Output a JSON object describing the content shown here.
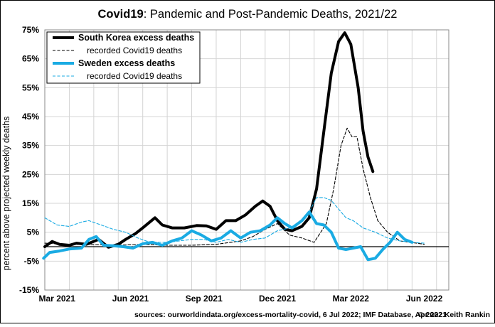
{
  "chart_data": {
    "type": "line",
    "title_bold": "Covid19",
    "title_rest": ": Pandemic and Post-Pandemic Deaths, 2021/22",
    "ylabel": "percent above projected weekly deaths",
    "xlabel": "",
    "ylim": [
      -15,
      75
    ],
    "yticks": [
      -15,
      -5,
      5,
      15,
      25,
      35,
      45,
      55,
      65,
      75
    ],
    "ytick_labels": [
      "-15%",
      "-5%",
      "5%",
      "15%",
      "25%",
      "35%",
      "45%",
      "55%",
      "65%",
      "75%"
    ],
    "xlim": [
      0,
      16.5
    ],
    "xticks": [
      {
        "pos": 0.5,
        "label": "Mar 2021"
      },
      {
        "pos": 3.5,
        "label": "Jun 2021"
      },
      {
        "pos": 6.5,
        "label": "Sep 2021"
      },
      {
        "pos": 9.5,
        "label": "Dec 2021"
      },
      {
        "pos": 12.5,
        "label": "Mar 2022"
      },
      {
        "pos": 15.5,
        "label": "Jun 2022"
      }
    ],
    "grid": true,
    "legend_position": "top-left",
    "series": [
      {
        "name": "South Korea excess deaths",
        "color": "#000000",
        "style": "solid-thick",
        "points": [
          [
            0,
            0
          ],
          [
            0.3,
            1.8
          ],
          [
            0.6,
            0.8
          ],
          [
            1,
            0.5
          ],
          [
            1.3,
            1.2
          ],
          [
            1.7,
            0.8
          ],
          [
            2.2,
            2.5
          ],
          [
            2.6,
            -0.2
          ],
          [
            3,
            0.8
          ],
          [
            3.3,
            2.5
          ],
          [
            3.7,
            4.5
          ],
          [
            4,
            6.5
          ],
          [
            4.5,
            10
          ],
          [
            4.8,
            7.5
          ],
          [
            5.2,
            6.5
          ],
          [
            5.7,
            6.5
          ],
          [
            6.2,
            7.3
          ],
          [
            6.6,
            7.2
          ],
          [
            7.0,
            6
          ],
          [
            7.4,
            9
          ],
          [
            7.8,
            9
          ],
          [
            8.2,
            11
          ],
          [
            8.6,
            14
          ],
          [
            8.9,
            15.8
          ],
          [
            9.2,
            14
          ],
          [
            9.5,
            9
          ],
          [
            9.8,
            6
          ],
          [
            10.1,
            5.5
          ],
          [
            10.5,
            7
          ],
          [
            10.8,
            10
          ],
          [
            11.1,
            20
          ],
          [
            11.4,
            40
          ],
          [
            11.7,
            60
          ],
          [
            12.0,
            71
          ],
          [
            12.25,
            74
          ],
          [
            12.5,
            70
          ],
          [
            12.8,
            55
          ],
          [
            13.0,
            40
          ],
          [
            13.2,
            31
          ],
          [
            13.4,
            26
          ]
        ]
      },
      {
        "name": "recorded Covid19 deaths",
        "color": "#000000",
        "style": "dashed-thin",
        "points": [
          [
            0,
            1.2
          ],
          [
            1,
            0.8
          ],
          [
            2,
            0.7
          ],
          [
            3,
            0.5
          ],
          [
            4,
            0.8
          ],
          [
            5,
            0.5
          ],
          [
            6,
            0.5
          ],
          [
            7,
            0.8
          ],
          [
            8,
            2
          ],
          [
            8.5,
            3.5
          ],
          [
            9,
            6
          ],
          [
            9.5,
            8
          ],
          [
            10,
            4
          ],
          [
            10.5,
            3
          ],
          [
            11,
            1.5
          ],
          [
            11.5,
            8
          ],
          [
            11.8,
            20
          ],
          [
            12.1,
            35
          ],
          [
            12.35,
            41
          ],
          [
            12.55,
            38
          ],
          [
            12.75,
            38
          ],
          [
            13.0,
            27
          ],
          [
            13.3,
            17
          ],
          [
            13.6,
            9
          ],
          [
            14,
            5
          ],
          [
            14.5,
            2
          ],
          [
            15.2,
            1.2
          ],
          [
            15.5,
            0.8
          ]
        ]
      },
      {
        "name": "Sweden excess deaths",
        "color": "#1AABE3",
        "style": "solid-thick",
        "points": [
          [
            -0.05,
            -4
          ],
          [
            0.2,
            -2
          ],
          [
            0.6,
            -1.5
          ],
          [
            1.0,
            -0.8
          ],
          [
            1.5,
            -0.5
          ],
          [
            1.8,
            2.5
          ],
          [
            2.1,
            3.5
          ],
          [
            2.4,
            0.5
          ],
          [
            2.8,
            0.3
          ],
          [
            3.2,
            0
          ],
          [
            3.6,
            -0.5
          ],
          [
            4.0,
            1
          ],
          [
            4.4,
            1.5
          ],
          [
            4.8,
            0.5
          ],
          [
            5.2,
            2
          ],
          [
            5.6,
            3
          ],
          [
            6.0,
            5.5
          ],
          [
            6.4,
            4
          ],
          [
            6.8,
            2
          ],
          [
            7.2,
            3
          ],
          [
            7.6,
            5.5
          ],
          [
            8.0,
            3
          ],
          [
            8.4,
            5
          ],
          [
            8.8,
            5.5
          ],
          [
            9.2,
            7.5
          ],
          [
            9.5,
            10
          ],
          [
            9.8,
            8
          ],
          [
            10.1,
            6.5
          ],
          [
            10.5,
            9
          ],
          [
            10.8,
            12
          ],
          [
            11.1,
            8
          ],
          [
            11.4,
            7.5
          ],
          [
            11.7,
            5
          ],
          [
            12.0,
            -0.5
          ],
          [
            12.3,
            -1
          ],
          [
            12.6,
            -0.5
          ],
          [
            12.9,
            0
          ],
          [
            13.2,
            -4.5
          ],
          [
            13.5,
            -4
          ],
          [
            13.8,
            -1
          ],
          [
            14.1,
            1.5
          ],
          [
            14.4,
            5
          ],
          [
            14.7,
            2.5
          ],
          [
            15.0,
            1.5
          ]
        ]
      },
      {
        "name": "recorded Covid19 deaths",
        "color": "#1AABE3",
        "style": "dashed-thin",
        "points": [
          [
            0,
            10
          ],
          [
            0.5,
            7.5
          ],
          [
            1,
            7
          ],
          [
            1.5,
            8.5
          ],
          [
            1.8,
            9
          ],
          [
            2.3,
            7.5
          ],
          [
            2.8,
            6
          ],
          [
            3.3,
            5
          ],
          [
            3.8,
            3
          ],
          [
            4.3,
            1.5
          ],
          [
            5,
            1.5
          ],
          [
            5.5,
            2
          ],
          [
            6,
            2.5
          ],
          [
            6.5,
            2.5
          ],
          [
            7,
            1.5
          ],
          [
            7.5,
            2.5
          ],
          [
            8,
            1.5
          ],
          [
            8.5,
            2.5
          ],
          [
            9,
            3
          ],
          [
            9.5,
            5.5
          ],
          [
            10,
            6.5
          ],
          [
            10.5,
            9
          ],
          [
            10.8,
            12
          ],
          [
            11.1,
            17
          ],
          [
            11.4,
            17
          ],
          [
            11.7,
            16
          ],
          [
            12.0,
            13
          ],
          [
            12.3,
            10
          ],
          [
            12.6,
            9
          ],
          [
            13.0,
            6.5
          ],
          [
            13.5,
            5
          ],
          [
            14,
            3
          ],
          [
            14.5,
            2
          ],
          [
            15,
            1.5
          ],
          [
            15.5,
            1.2
          ]
        ]
      }
    ],
    "footer_source": "sources: ourworldindata.org/excess-mortality-covid, 6 Jul 2022; IMF Database, Apr 2021",
    "footer_credit": "© 2022 Keith Rankin"
  }
}
